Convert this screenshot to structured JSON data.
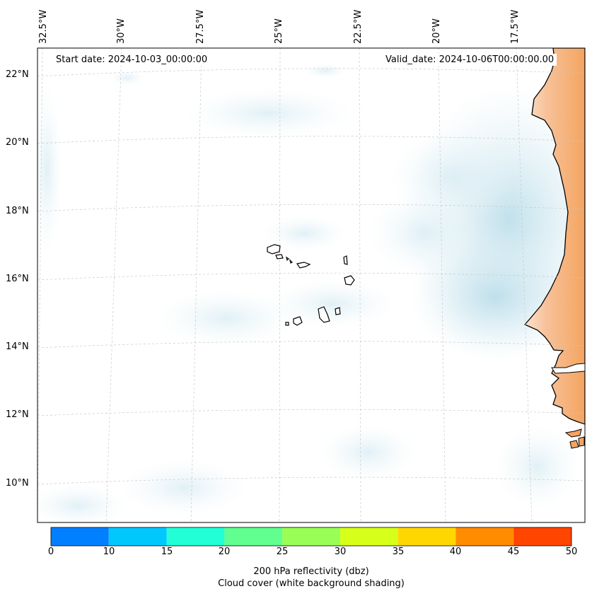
{
  "map": {
    "start_date": "Start date: 2024-10-03_00:00:00",
    "valid_date": "Valid_date: 2024-10-06T00:00:00.00",
    "lon_labels": [
      "32.5°W",
      "30°W",
      "27.5°W",
      "25°W",
      "22.5°W",
      "20°W",
      "17.5°W"
    ],
    "lat_labels": [
      "22°N",
      "20°N",
      "18°N",
      "16°N",
      "14°N",
      "12°N",
      "10°N"
    ],
    "land_color": "#f4a460",
    "cloud_color": "#add8e6"
  },
  "colorbar": {
    "ticks": [
      "0",
      "10",
      "15",
      "20",
      "25",
      "30",
      "35",
      "40",
      "45",
      "50"
    ],
    "colors": [
      "#0080ff",
      "#00c8ff",
      "#22ffd7",
      "#60ff90",
      "#99ff55",
      "#d6ff1a",
      "#ffd700",
      "#ff8c00",
      "#ff4500"
    ],
    "label_line1": "200 hPa reflectivity (dbz)",
    "label_line2": "Cloud cover (white background shading)"
  }
}
